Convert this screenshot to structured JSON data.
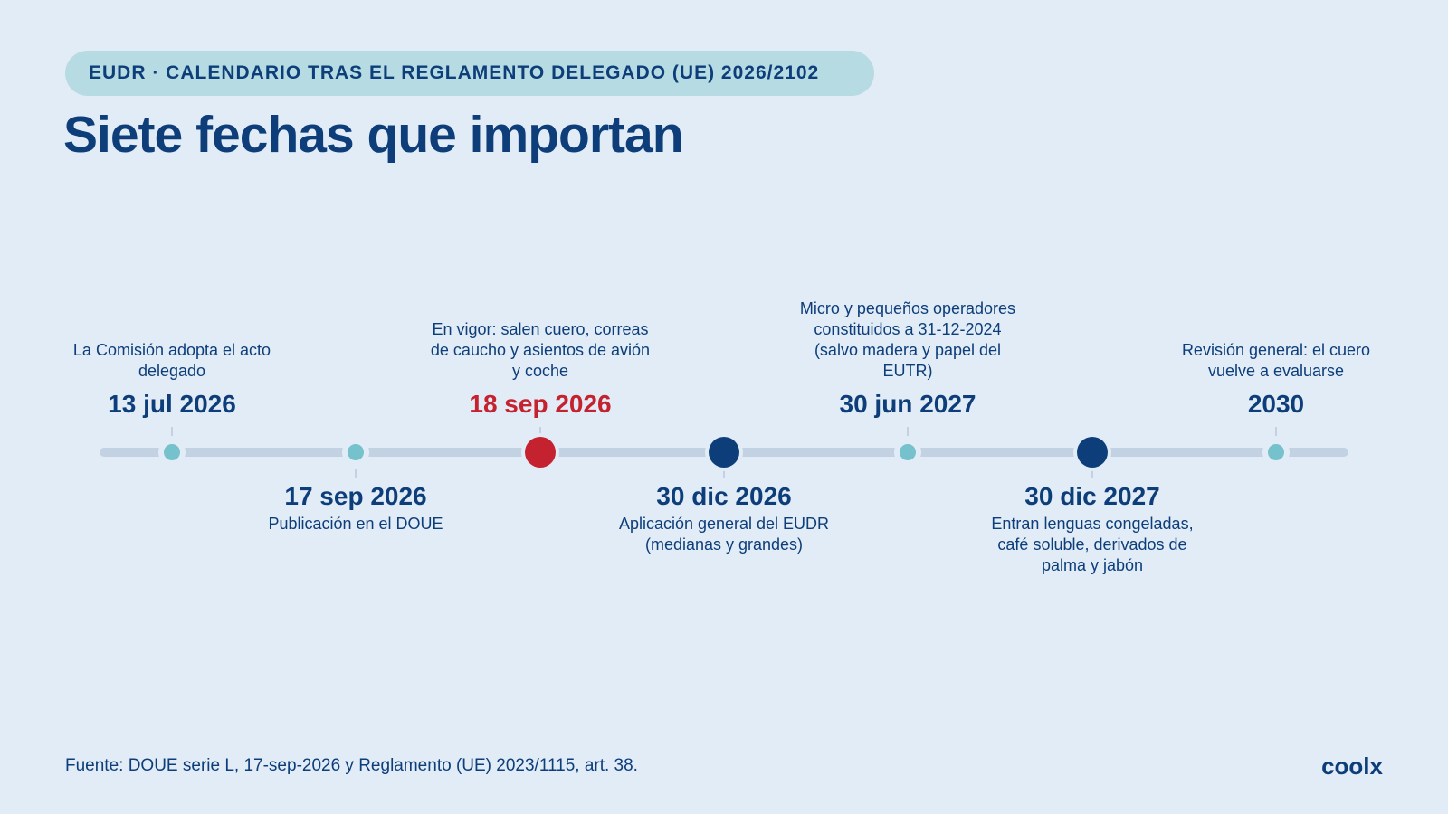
{
  "header": {
    "pill_text": "EUDR · CALENDARIO TRAS EL REGLAMENTO DELEGADO (UE) 2026/2102",
    "title": "Siete fechas que importan"
  },
  "timeline": {
    "events": [
      {
        "date": "13 jul 2026",
        "description": "La Comisión adopta el acto delegado",
        "side": "above",
        "marker": "small",
        "color": "#75c1cc"
      },
      {
        "date": "17 sep 2026",
        "description": "Publicación en el DOUE",
        "side": "below",
        "marker": "small",
        "color": "#75c1cc"
      },
      {
        "date": "18 sep 2026",
        "description": "En vigor: salen cuero, correas de caucho y asientos de avión y coche",
        "side": "above",
        "marker": "large",
        "color": "#c5222f"
      },
      {
        "date": "30 dic 2026",
        "description": "Aplicación general del EUDR (medianas y grandes)",
        "side": "below",
        "marker": "large",
        "color": "#0d3e7a"
      },
      {
        "date": "30 jun 2027",
        "description": "Micro y pequeños operadores constituidos a 31-12-2024 (salvo madera y papel del EUTR)",
        "side": "above",
        "marker": "small",
        "color": "#75c1cc"
      },
      {
        "date": "30 dic 2027",
        "description": "Entran lenguas congeladas, café soluble, derivados de palma y jabón",
        "side": "below",
        "marker": "large",
        "color": "#0d3e7a"
      },
      {
        "date": "2030",
        "description": "Revisión general: el cuero vuelve a evaluarse",
        "side": "above",
        "marker": "small",
        "color": "#75c1cc"
      }
    ]
  },
  "footer": {
    "source": "Fuente: DOUE serie L, 17-sep-2026 y Reglamento (UE) 2023/1115, art. 38.",
    "brand": "coolx"
  },
  "colors": {
    "background": "#e1ecf7",
    "navy": "#0d3e7a",
    "red_accent": "#c5222f",
    "teal": "#75c1cc",
    "track": "#c3d2e3",
    "pill": "#b7dbe2"
  }
}
